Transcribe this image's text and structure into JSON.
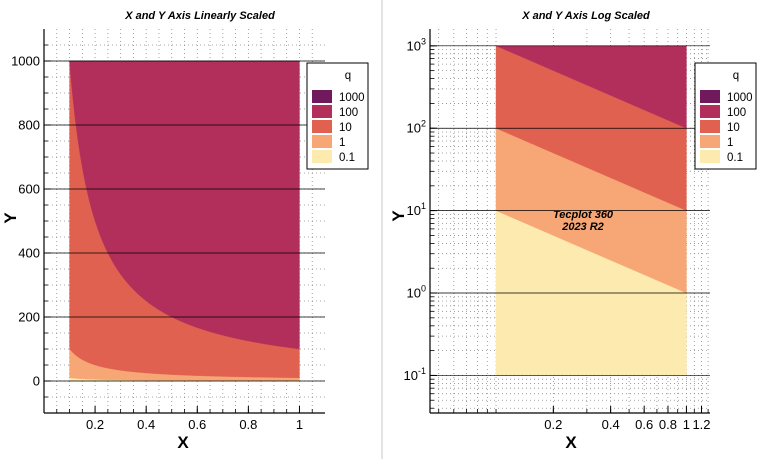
{
  "annotation": {
    "line1": "Tecplot 360",
    "line2": "2023 R2"
  },
  "colors": {
    "background": "#ffffff",
    "bands": [
      "#fdeaae",
      "#f6a775",
      "#e0614f",
      "#b22f5b",
      "#701a5d"
    ],
    "divider": "#c8c8c8"
  },
  "chart_data": [
    {
      "type": "area",
      "title": "X and Y Axis Linearly Scaled",
      "xlabel": "X",
      "ylabel": "Y",
      "xscale": "linear",
      "yscale": "linear",
      "xlim": [
        0,
        1.1
      ],
      "ylim": [
        -100,
        1100
      ],
      "xticks": [
        0.2,
        0.4,
        0.6,
        0.8,
        1
      ],
      "xtick_labels": [
        "0.2",
        "0.4",
        "0.6",
        "0.8",
        "1"
      ],
      "yticks": [
        0,
        200,
        400,
        600,
        800,
        1000
      ],
      "ytick_labels": [
        "0",
        "200",
        "400",
        "600",
        "800",
        "1000"
      ],
      "grid": true,
      "domain": {
        "x": [
          0.1,
          1
        ],
        "y": [
          0,
          1000
        ]
      },
      "contour_function": "q = x * y",
      "contour_levels": [
        0.1,
        1,
        10,
        100,
        1000
      ],
      "legend": {
        "title": "q",
        "position": "right",
        "entries": [
          {
            "label": "1000",
            "color": "#701a5d"
          },
          {
            "label": "100",
            "color": "#b22f5b"
          },
          {
            "label": "10",
            "color": "#e0614f"
          },
          {
            "label": "1",
            "color": "#f6a775"
          },
          {
            "label": "0.1",
            "color": "#fdeaae"
          }
        ]
      }
    },
    {
      "type": "area",
      "title": "X and Y Axis Log Scaled",
      "xlabel": "X",
      "ylabel": "Y",
      "xscale": "log",
      "yscale": "log",
      "xlim": [
        0.045,
        1.33
      ],
      "ylim": [
        0.035,
        1600
      ],
      "xticks": [
        0.2,
        0.4,
        0.6,
        0.8,
        1,
        1.2
      ],
      "xtick_labels": [
        "0.2",
        "0.4",
        "0.6",
        "0.8",
        "1",
        "1.2"
      ],
      "yticks": [
        0.1,
        1,
        10,
        100,
        1000
      ],
      "ytick_labels": [
        {
          "base": "10",
          "exp": "-1"
        },
        {
          "base": "10",
          "exp": "0"
        },
        {
          "base": "10",
          "exp": "1"
        },
        {
          "base": "10",
          "exp": "2"
        },
        {
          "base": "10",
          "exp": "3"
        }
      ],
      "grid": true,
      "domain": {
        "x": [
          0.1,
          1
        ],
        "y": [
          0.1,
          1000
        ]
      },
      "contour_function": "q = x * y",
      "contour_levels": [
        0.1,
        1,
        10,
        100,
        1000
      ],
      "legend": {
        "title": "q",
        "position": "right",
        "entries": [
          {
            "label": "1000",
            "color": "#701a5d"
          },
          {
            "label": "100",
            "color": "#b22f5b"
          },
          {
            "label": "10",
            "color": "#e0614f"
          },
          {
            "label": "1",
            "color": "#f6a775"
          },
          {
            "label": "0.1",
            "color": "#fdeaae"
          }
        ]
      }
    }
  ]
}
